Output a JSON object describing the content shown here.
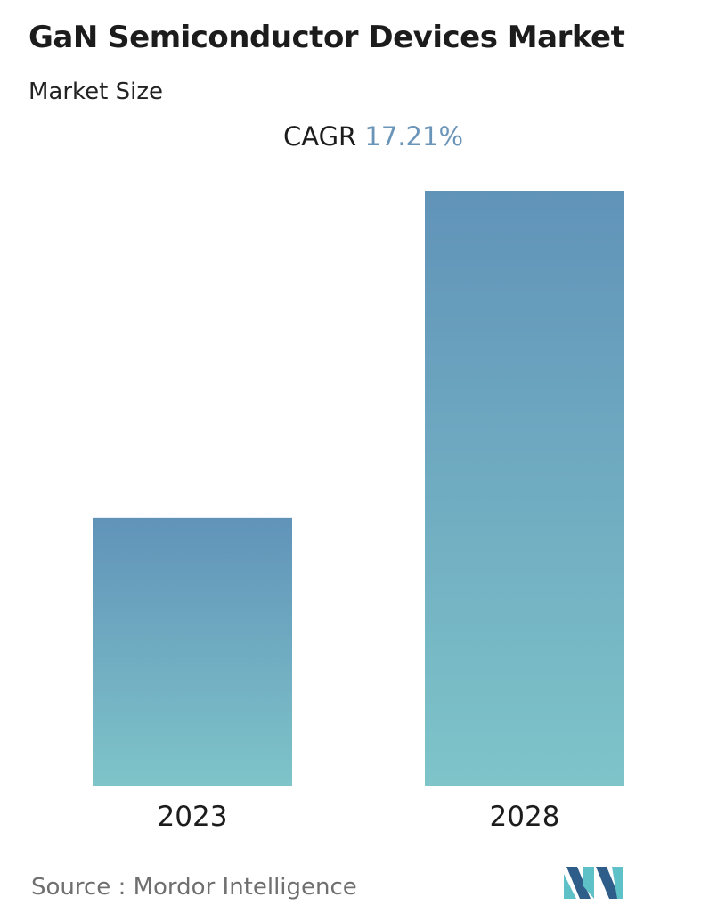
{
  "header": {
    "title": "GaN Semiconductor Devices Market",
    "subtitle": "Market Size"
  },
  "cagr": {
    "label": "CAGR",
    "value": "17.21%"
  },
  "chart_data": {
    "type": "bar",
    "title": "GaN Semiconductor Devices Market",
    "subtitle": "Market Size",
    "categories": [
      "2023",
      "2028"
    ],
    "values": [
      45,
      100
    ],
    "ylim": [
      0,
      100
    ],
    "grid": false,
    "legend": "none",
    "annotations": [
      "CAGR 17.21%"
    ],
    "colors": {
      "bar_top": "#6193b9",
      "bar_bottom": "#7ec4c9"
    }
  },
  "footer": {
    "source": "Source :  Mordor Intelligence"
  },
  "colors": {
    "accent": "#6b95b8",
    "logo_dark": "#2e5d8a",
    "logo_light": "#5fc1c8"
  }
}
